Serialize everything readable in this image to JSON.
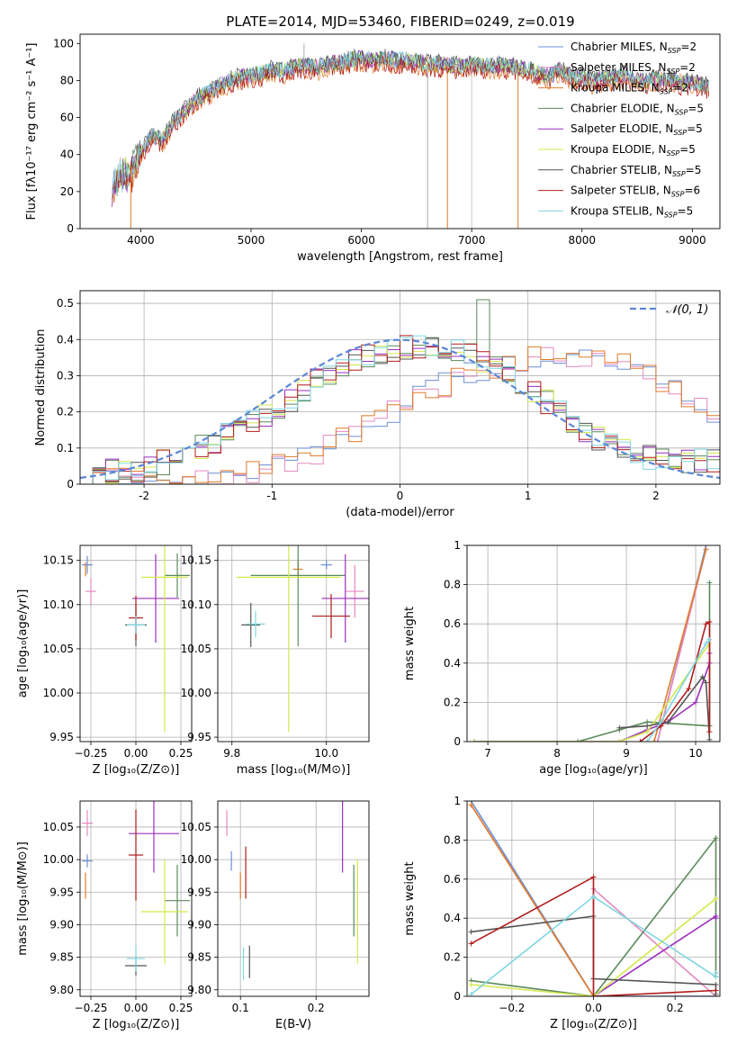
{
  "figure": {
    "title": "PLATE=2014, MJD=53460, FIBERID=0249, z=0.019",
    "colors": [
      "#6b8fd6",
      "#e58ac0",
      "#e07b2a",
      "#5b8a5b",
      "#9b2fbf",
      "#d4e84a",
      "#555555",
      "#b01c1c",
      "#7fd6e0"
    ]
  },
  "legend1": [
    {
      "model": "Chabrier MILES",
      "n": "2"
    },
    {
      "model": "Salpeter MILES",
      "n": "2"
    },
    {
      "model": "Kroupa MILES",
      "n": "2"
    },
    {
      "model": "Chabrier ELODIE",
      "n": "5"
    },
    {
      "model": "Salpeter ELODIE",
      "n": "5"
    },
    {
      "model": "Kroupa ELODIE",
      "n": "5"
    },
    {
      "model": "Chabrier STELIB",
      "n": "5"
    },
    {
      "model": "Salpeter STELIB",
      "n": "6"
    },
    {
      "model": "Kroupa STELIB",
      "n": "5"
    }
  ],
  "legend2": {
    "label": "𝒩(0, 1)"
  },
  "chart_data": [
    {
      "id": "spectrum",
      "type": "line",
      "xlabel": "wavelength [Angstrom, rest frame]",
      "ylabel": "Flux [fλ10⁻¹⁷ erg cm⁻² s⁻¹ A⁻¹]",
      "xlim": [
        3450,
        9250
      ],
      "ylim": [
        0,
        105
      ],
      "xticks": [
        4000,
        5000,
        6000,
        7000,
        8000,
        9000
      ],
      "yticks": [
        0,
        20,
        40,
        60,
        80,
        100
      ],
      "envelope": {
        "x": [
          3740,
          3800,
          3900,
          4000,
          4100,
          4200,
          4300,
          4400,
          4500,
          4600,
          4700,
          4800,
          4900,
          5000,
          5100,
          5200,
          5300,
          5400,
          5500,
          5600,
          5700,
          5800,
          5900,
          6000,
          6100,
          6200,
          6300,
          6400,
          6500,
          6600,
          6700,
          6800,
          6900,
          7000,
          7100,
          7200,
          7300,
          7400,
          7500,
          7600,
          7700,
          7800,
          7900,
          8000,
          8100,
          8200,
          8300,
          8400,
          8500,
          8600,
          8700,
          8800,
          8900,
          9000,
          9100,
          9150
        ],
        "y": [
          22,
          28,
          30,
          42,
          50,
          48,
          58,
          64,
          70,
          73,
          77,
          80,
          82,
          83,
          84,
          86,
          85,
          88,
          88,
          87,
          89,
          90,
          91,
          92,
          91,
          92,
          91,
          91,
          90,
          89,
          89,
          88,
          88,
          89,
          88,
          88,
          88,
          87,
          87,
          84,
          82,
          86,
          82,
          82,
          80,
          81,
          82,
          83,
          80,
          80,
          81,
          81,
          79,
          79,
          78,
          77
        ]
      },
      "drops": [
        {
          "x": 3910,
          "y": 0,
          "series": "Kroupa MILES"
        },
        {
          "x": 5480,
          "y": 100,
          "series": "Chabrier STELIB"
        },
        {
          "x": 6600,
          "y": 0,
          "series": "Chabrier STELIB"
        },
        {
          "x": 6780,
          "y": 0,
          "series": "Kroupa MILES"
        },
        {
          "x": 7000,
          "y": 0,
          "series": "Salpeter MILES"
        },
        {
          "x": 7420,
          "y": 0,
          "series": "Kroupa MILES"
        }
      ]
    },
    {
      "id": "residuals",
      "type": "step_histogram",
      "xlabel": "(data-model)/error",
      "ylabel": "Normed distribution",
      "xlim": [
        -2.5,
        2.5
      ],
      "ylim": [
        0,
        0.535
      ],
      "xticks": [
        -2,
        -1,
        0,
        1,
        2
      ],
      "yticks": [
        0,
        0.1,
        0.2,
        0.3,
        0.4,
        0.5
      ],
      "bin_width": 0.1,
      "wide_profile": {
        "x": [
          -2.5,
          -2,
          -1.5,
          -1,
          -0.5,
          0,
          0.5,
          1,
          1.5,
          2,
          2.5
        ],
        "y": [
          0.03,
          0.04,
          0.11,
          0.2,
          0.32,
          0.38,
          0.37,
          0.27,
          0.13,
          0.07,
          0.06
        ]
      },
      "shifted_profile": {
        "x": [
          -2.5,
          -2,
          -1.5,
          -1,
          -0.5,
          0,
          0.5,
          1,
          1.5,
          2,
          2.5
        ],
        "y": [
          0.02,
          0.01,
          0.01,
          0.04,
          0.11,
          0.21,
          0.3,
          0.35,
          0.36,
          0.3,
          0.18
        ]
      },
      "gaussian": {
        "mu": 0,
        "sigma": 1
      }
    },
    {
      "id": "age_vs_Z",
      "type": "errorbar",
      "xlabel": "Z [log₁₀(Z/Z⊙)]",
      "ylabel": "age  [log₁₀(age/yr)]",
      "xlim": [
        -0.31,
        0.31
      ],
      "ylim": [
        9.945,
        10.167
      ],
      "xticks": [
        -0.25,
        0,
        0.25
      ],
      "xticklabels": [
        "−0.25",
        "0.00",
        "0.25"
      ],
      "yticks": [
        9.95,
        10,
        10.05,
        10.1,
        10.15
      ],
      "yticklabels": [
        "9.95",
        "10.00",
        "10.05",
        "10.10",
        "10.15"
      ],
      "points": [
        {
          "x": -0.27,
          "xe": 0.03,
          "y": 10.145,
          "ye": 0.01
        },
        {
          "x": -0.25,
          "xe": 0.03,
          "y": 10.115,
          "ye": 0.015
        },
        {
          "x": -0.28,
          "xe": 0.0,
          "y": 10.14,
          "ye": 0.008
        },
        {
          "x": 0.23,
          "xe": 0.07,
          "y": 10.133,
          "ye": 0.025
        },
        {
          "x": 0.11,
          "xe": 0.13,
          "y": 10.107,
          "ye": 0.05
        },
        {
          "x": 0.16,
          "xe": 0.13,
          "y": 10.131,
          "ye": 0.175
        },
        {
          "x": 0.0,
          "xe": 0.06,
          "y": 10.077,
          "ye": 0.024
        },
        {
          "x": 0.0,
          "xe": 0.04,
          "y": 10.085,
          "ye": 0.025
        },
        {
          "x": 0.0,
          "xe": 0.05,
          "y": 10.077,
          "ye": 0.01
        }
      ]
    },
    {
      "id": "age_vs_mass",
      "type": "errorbar",
      "xlabel": "mass [log₁₀(M/M⊙)]",
      "ylabel": "",
      "xlim": [
        9.77,
        10.09
      ],
      "ylim": [
        9.945,
        10.167
      ],
      "xticks": [
        9.8,
        10.0
      ],
      "xticklabels": [
        "9.8",
        "10.0"
      ],
      "yticks": [
        9.95,
        10,
        10.05,
        10.1,
        10.15
      ],
      "yticklabels": [
        "9.95",
        "10.00",
        "10.05",
        "10.10",
        "10.15"
      ],
      "points": [
        {
          "x": 10.0,
          "xe": 0.012,
          "y": 10.145,
          "ye": 0.005
        },
        {
          "x": 10.06,
          "xe": 0.02,
          "y": 10.115,
          "ye": 0.03
        },
        {
          "x": 9.94,
          "xe": 0.01,
          "y": 10.14,
          "ye": 0.01
        },
        {
          "x": 9.94,
          "xe": 0.1,
          "y": 10.133,
          "ye": 0.08
        },
        {
          "x": 10.04,
          "xe": 0.05,
          "y": 10.107,
          "ye": 0.05
        },
        {
          "x": 9.92,
          "xe": 0.11,
          "y": 10.131,
          "ye": 0.175
        },
        {
          "x": 9.84,
          "xe": 0.02,
          "y": 10.077,
          "ye": 0.025
        },
        {
          "x": 10.01,
          "xe": 0.04,
          "y": 10.087,
          "ye": 0.025
        },
        {
          "x": 9.85,
          "xe": 0.02,
          "y": 10.078,
          "ye": 0.015
        }
      ]
    },
    {
      "id": "weight_vs_age",
      "type": "line",
      "xlabel": "age  [log₁₀(age/yr)]",
      "ylabel": "mass weight",
      "xlim": [
        6.7,
        10.35
      ],
      "ylim": [
        0,
        1
      ],
      "xticks": [
        7,
        8,
        9,
        10
      ],
      "yticks": [
        0,
        0.2,
        0.4,
        0.6,
        0.8,
        1.0
      ],
      "series": [
        {
          "x": [
            9.45,
            10.15
          ],
          "y": [
            0.0,
            1.0
          ]
        },
        {
          "x": [
            9.45,
            10.15
          ],
          "y": [
            0.0,
            0.98
          ]
        },
        {
          "x": [
            9.4,
            10.15
          ],
          "y": [
            0.0,
            0.98
          ]
        },
        {
          "x": [
            6.8,
            8.3,
            8.9,
            9.3,
            10.2,
            10.2
          ],
          "y": [
            0.0,
            0.0,
            0.06,
            0.1,
            0.08,
            0.81
          ]
        },
        {
          "x": [
            6.8,
            8.9,
            9.3,
            9.6,
            10.0,
            10.2,
            10.2
          ],
          "y": [
            0.0,
            0.0,
            0.06,
            0.1,
            0.2,
            0.4,
            0.45
          ]
        },
        {
          "x": [
            6.8,
            8.9,
            9.3,
            10.2,
            10.2
          ],
          "y": [
            0.0,
            0.0,
            0.05,
            0.5,
            0.5
          ]
        },
        {
          "x": [
            8.9,
            9.3,
            9.6,
            10.1,
            10.15,
            10.2
          ],
          "y": [
            0.07,
            0.08,
            0.1,
            0.33,
            0.3,
            0.01
          ]
        },
        {
          "x": [
            9.2,
            9.5,
            9.9,
            10.15,
            10.2,
            10.2
          ],
          "y": [
            0.0,
            0.08,
            0.27,
            0.6,
            0.61,
            0.05
          ]
        },
        {
          "x": [
            9.3,
            9.5,
            10.15,
            10.2
          ],
          "y": [
            0.0,
            0.1,
            0.5,
            0.52
          ]
        }
      ]
    },
    {
      "id": "mass_vs_Z",
      "type": "errorbar",
      "xlabel": "Z [log₁₀(Z/Z⊙)]",
      "ylabel": "mass [log₁₀(M/M⊙)]",
      "xlim": [
        -0.31,
        0.31
      ],
      "ylim": [
        9.79,
        10.09
      ],
      "xticks": [
        -0.25,
        0,
        0.25
      ],
      "xticklabels": [
        "−0.25",
        "0.00",
        "0.25"
      ],
      "yticks": [
        9.8,
        9.85,
        9.9,
        9.95,
        10,
        10.05
      ],
      "yticklabels": [
        "9.80",
        "9.85",
        "9.90",
        "9.95",
        "10.00",
        "10.05"
      ],
      "points": [
        {
          "x": -0.27,
          "xe": 0.03,
          "y": 9.998,
          "ye": 0.01
        },
        {
          "x": -0.27,
          "xe": 0.03,
          "y": 10.056,
          "ye": 0.02
        },
        {
          "x": -0.28,
          "xe": 0.0,
          "y": 9.96,
          "ye": 0.02
        },
        {
          "x": 0.23,
          "xe": 0.07,
          "y": 9.937,
          "ye": 0.055
        },
        {
          "x": 0.1,
          "xe": 0.14,
          "y": 10.04,
          "ye": 0.06
        },
        {
          "x": 0.16,
          "xe": 0.13,
          "y": 9.92,
          "ye": 0.08
        },
        {
          "x": 0.0,
          "xe": 0.06,
          "y": 9.837,
          "ye": 0.015
        },
        {
          "x": 0.0,
          "xe": 0.04,
          "y": 10.007,
          "ye": 0.07
        },
        {
          "x": 0.0,
          "xe": 0.05,
          "y": 9.848,
          "ye": 0.02
        }
      ]
    },
    {
      "id": "mass_vs_EBV",
      "type": "errorbar",
      "xlabel": "E(B-V)",
      "ylabel": "",
      "xlim": [
        0.07,
        0.27
      ],
      "ylim": [
        9.79,
        10.09
      ],
      "xticks": [
        0.1,
        0.2
      ],
      "xticklabels": [
        "0.1",
        "0.2"
      ],
      "yticks": [
        9.8,
        9.85,
        9.9,
        9.95,
        10,
        10.05
      ],
      "yticklabels": [
        "9.80",
        "9.85",
        "9.90",
        "9.95",
        "10.00",
        "10.05"
      ],
      "points": [
        {
          "x": 0.088,
          "xe": 0,
          "y": 9.998,
          "ye": 0.015
        },
        {
          "x": 0.082,
          "xe": 0,
          "y": 10.056,
          "ye": 0.02
        },
        {
          "x": 0.1,
          "xe": 0,
          "y": 9.96,
          "ye": 0.02
        },
        {
          "x": 0.25,
          "xe": 0,
          "y": 9.937,
          "ye": 0.055
        },
        {
          "x": 0.235,
          "xe": 0,
          "y": 10.04,
          "ye": 0.06
        },
        {
          "x": 0.255,
          "xe": 0,
          "y": 9.92,
          "ye": 0.08
        },
        {
          "x": 0.112,
          "xe": 0,
          "y": 9.843,
          "ye": 0.025
        },
        {
          "x": 0.107,
          "xe": 0,
          "y": 9.98,
          "ye": 0.04
        },
        {
          "x": 0.104,
          "xe": 0,
          "y": 9.84,
          "ye": 0.025
        }
      ]
    },
    {
      "id": "weight_vs_Z",
      "type": "line",
      "xlabel": "Z [log₁₀(Z/Z⊙)]",
      "ylabel": "mass weight",
      "xlim": [
        -0.31,
        0.31
      ],
      "ylim": [
        0,
        1
      ],
      "xticks": [
        -0.2,
        0,
        0.2
      ],
      "xticklabels": [
        "−0.2",
        "0.0",
        "0.2"
      ],
      "yticks": [
        0,
        0.2,
        0.4,
        0.6,
        0.8,
        1.0
      ],
      "series": [
        {
          "x": [
            -0.3,
            0.0,
            0.3
          ],
          "y": [
            1.0,
            0.0,
            0.0
          ]
        },
        {
          "x": [
            -0.3,
            0.0,
            0.0,
            0.3
          ],
          "y": [
            0.98,
            0.0,
            0.55,
            0.0
          ]
        },
        {
          "x": [
            -0.3,
            0.0,
            0.0
          ],
          "y": [
            0.98,
            0.0,
            0.0
          ]
        },
        {
          "x": [
            -0.3,
            0.0,
            0.3,
            0.3
          ],
          "y": [
            0.08,
            0.0,
            0.81,
            0.1
          ]
        },
        {
          "x": [
            0.0,
            0.3,
            0.3
          ],
          "y": [
            0.0,
            0.41,
            0.4
          ]
        },
        {
          "x": [
            -0.3,
            0.0,
            0.3,
            0.3
          ],
          "y": [
            0.06,
            0.0,
            0.5,
            0.5
          ]
        },
        {
          "x": [
            -0.3,
            0.0,
            0.0,
            0.3,
            0.3
          ],
          "y": [
            0.33,
            0.41,
            0.09,
            0.06,
            0.01
          ]
        },
        {
          "x": [
            -0.3,
            0.0,
            0.0,
            0.3
          ],
          "y": [
            0.27,
            0.61,
            0.0,
            0.03
          ]
        },
        {
          "x": [
            -0.3,
            0.0,
            0.3,
            0.3
          ],
          "y": [
            0.01,
            0.51,
            0.1,
            0.12
          ]
        }
      ]
    }
  ]
}
